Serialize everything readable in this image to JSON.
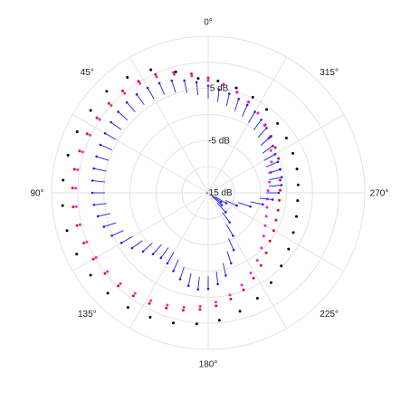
{
  "chart_data": {
    "type": "scatter",
    "coordinate_system": "polar",
    "angle_direction": "counterclockwise",
    "zero_angle": "top",
    "radial_ticks": [
      "5 dB",
      "-5 dB",
      "-15 dB"
    ],
    "angle_ticks": [
      "0°",
      "45°",
      "90°",
      "135°",
      "180°",
      "225°",
      "270°",
      "315°"
    ],
    "radial_range_dB": [
      -15,
      15
    ],
    "grid": true,
    "legend": "none",
    "series": [
      {
        "color": "#000000",
        "marker": "dot",
        "points": [
          {
            "theta": 5,
            "r": 7
          },
          {
            "theta": 15,
            "r": 9
          },
          {
            "theta": 25,
            "r": 11
          },
          {
            "theta": 35,
            "r": 12
          },
          {
            "theta": 45,
            "r": 12.5
          },
          {
            "theta": 55,
            "r": 12.5
          },
          {
            "theta": 65,
            "r": 12.7
          },
          {
            "theta": 75,
            "r": 12.8
          },
          {
            "theta": 85,
            "r": 12.9
          },
          {
            "theta": 95,
            "r": 13
          },
          {
            "theta": 105,
            "r": 13
          },
          {
            "theta": 115,
            "r": 12.8
          },
          {
            "theta": 125,
            "r": 12.5
          },
          {
            "theta": 135,
            "r": 12.2
          },
          {
            "theta": 145,
            "r": 11.8
          },
          {
            "theta": 155,
            "r": 11.3
          },
          {
            "theta": 165,
            "r": 10.8
          },
          {
            "theta": 175,
            "r": 10.2
          },
          {
            "theta": 185,
            "r": 9.5
          },
          {
            "theta": 195,
            "r": 8.5
          },
          {
            "theta": 205,
            "r": 7.3
          },
          {
            "theta": 215,
            "r": 6
          },
          {
            "theta": 225,
            "r": 4.8
          },
          {
            "theta": 235,
            "r": 3.8
          },
          {
            "theta": 245,
            "r": 3
          },
          {
            "theta": 255,
            "r": 2.5
          },
          {
            "theta": 265,
            "r": 2.2
          },
          {
            "theta": 275,
            "r": 2.3
          },
          {
            "theta": 285,
            "r": 2.6
          },
          {
            "theta": 295,
            "r": 2.9
          },
          {
            "theta": 305,
            "r": 3.3
          },
          {
            "theta": 315,
            "r": 3.8
          },
          {
            "theta": 325,
            "r": 4.5
          },
          {
            "theta": 335,
            "r": 5.2
          },
          {
            "theta": 345,
            "r": 5.8
          },
          {
            "theta": 355,
            "r": 6.5
          }
        ]
      },
      {
        "color": "#e4131b",
        "marker": "dot",
        "points": [
          {
            "theta": 0,
            "r": 7
          },
          {
            "theta": 8,
            "r": 8
          },
          {
            "theta": 16,
            "r": 9
          },
          {
            "theta": 24,
            "r": 9.8
          },
          {
            "theta": 32,
            "r": 10.2
          },
          {
            "theta": 40,
            "r": 10.5
          },
          {
            "theta": 48,
            "r": 10.6
          },
          {
            "theta": 56,
            "r": 10.7
          },
          {
            "theta": 64,
            "r": 10.8
          },
          {
            "theta": 72,
            "r": 10.9
          },
          {
            "theta": 80,
            "r": 11
          },
          {
            "theta": 88,
            "r": 11
          },
          {
            "theta": 96,
            "r": 11
          },
          {
            "theta": 104,
            "r": 10.9
          },
          {
            "theta": 112,
            "r": 10.7
          },
          {
            "theta": 120,
            "r": 10.4
          },
          {
            "theta": 128,
            "r": 10.1
          },
          {
            "theta": 136,
            "r": 9.8
          },
          {
            "theta": 144,
            "r": 9.4
          },
          {
            "theta": 152,
            "r": 9
          },
          {
            "theta": 160,
            "r": 8.5
          },
          {
            "theta": 168,
            "r": 8
          },
          {
            "theta": 176,
            "r": 7.4
          },
          {
            "theta": 184,
            "r": 6.7
          },
          {
            "theta": 192,
            "r": 5.8
          },
          {
            "theta": 200,
            "r": 4.8
          },
          {
            "theta": 208,
            "r": 3.5
          },
          {
            "theta": 216,
            "r": 2.2
          },
          {
            "theta": 224,
            "r": 1
          },
          {
            "theta": 232,
            "r": 0
          },
          {
            "theta": 240,
            "r": -0.5
          },
          {
            "theta": 248,
            "r": -1
          },
          {
            "theta": 256,
            "r": -1.2
          },
          {
            "theta": 264,
            "r": -1.3
          },
          {
            "theta": 272,
            "r": -1.2
          },
          {
            "theta": 280,
            "r": -1
          },
          {
            "theta": 288,
            "r": -0.5
          },
          {
            "theta": 296,
            "r": 0
          },
          {
            "theta": 304,
            "r": 0.5
          },
          {
            "theta": 312,
            "r": 1.2
          },
          {
            "theta": 320,
            "r": 2
          },
          {
            "theta": 328,
            "r": 3
          },
          {
            "theta": 336,
            "r": 4
          },
          {
            "theta": 344,
            "r": 5
          },
          {
            "theta": 352,
            "r": 6
          }
        ]
      },
      {
        "color": "#ee22e5",
        "marker": "dot",
        "points": [
          {
            "theta": 0,
            "r": 6.5
          },
          {
            "theta": 8,
            "r": 7.6
          },
          {
            "theta": 16,
            "r": 8.6
          },
          {
            "theta": 24,
            "r": 9.3
          },
          {
            "theta": 32,
            "r": 9.7
          },
          {
            "theta": 40,
            "r": 9.9
          },
          {
            "theta": 48,
            "r": 10
          },
          {
            "theta": 56,
            "r": 10.1
          },
          {
            "theta": 64,
            "r": 10.2
          },
          {
            "theta": 72,
            "r": 10.3
          },
          {
            "theta": 80,
            "r": 10.4
          },
          {
            "theta": 88,
            "r": 10.4
          },
          {
            "theta": 96,
            "r": 10.4
          },
          {
            "theta": 104,
            "r": 10.3
          },
          {
            "theta": 112,
            "r": 10.1
          },
          {
            "theta": 120,
            "r": 9.8
          },
          {
            "theta": 128,
            "r": 9.5
          },
          {
            "theta": 136,
            "r": 9.2
          },
          {
            "theta": 144,
            "r": 8.8
          },
          {
            "theta": 152,
            "r": 8.4
          },
          {
            "theta": 160,
            "r": 7.9
          },
          {
            "theta": 168,
            "r": 7.4
          },
          {
            "theta": 176,
            "r": 6.8
          },
          {
            "theta": 184,
            "r": 6
          },
          {
            "theta": 192,
            "r": 5
          },
          {
            "theta": 200,
            "r": 3.8
          },
          {
            "theta": 208,
            "r": 2.4
          },
          {
            "theta": 216,
            "r": 1
          },
          {
            "theta": 224,
            "r": -0.3
          },
          {
            "theta": 232,
            "r": -1.5
          },
          {
            "theta": 240,
            "r": -2.4
          },
          {
            "theta": 248,
            "r": -3
          },
          {
            "theta": 256,
            "r": -3.4
          },
          {
            "theta": 264,
            "r": -3.6
          },
          {
            "theta": 272,
            "r": -3.5
          },
          {
            "theta": 280,
            "r": -3.1
          },
          {
            "theta": 288,
            "r": -2.4
          },
          {
            "theta": 296,
            "r": -1.5
          },
          {
            "theta": 304,
            "r": -0.5
          },
          {
            "theta": 312,
            "r": 0.6
          },
          {
            "theta": 320,
            "r": 1.8
          },
          {
            "theta": 328,
            "r": 3
          },
          {
            "theta": 336,
            "r": 4.1
          },
          {
            "theta": 344,
            "r": 5.1
          },
          {
            "theta": 352,
            "r": 5.9
          }
        ]
      },
      {
        "color": "#1f1fe6",
        "marker": "arrow",
        "points": [
          {
            "theta": 0,
            "r": 5.5
          },
          {
            "theta": 6,
            "r": 6.3
          },
          {
            "theta": 12,
            "r": 7
          },
          {
            "theta": 18,
            "r": 7.6
          },
          {
            "theta": 24,
            "r": 8
          },
          {
            "theta": 30,
            "r": 8.2
          },
          {
            "theta": 36,
            "r": 8.3
          },
          {
            "theta": 42,
            "r": 8.3
          },
          {
            "theta": 48,
            "r": 8.2
          },
          {
            "theta": 54,
            "r": 8
          },
          {
            "theta": 60,
            "r": 7.8
          },
          {
            "theta": 66,
            "r": 7.6
          },
          {
            "theta": 72,
            "r": 7.5
          },
          {
            "theta": 78,
            "r": 7.4
          },
          {
            "theta": 84,
            "r": 7.3
          },
          {
            "theta": 90,
            "r": 7.2
          },
          {
            "theta": 96,
            "r": 7
          },
          {
            "theta": 102,
            "r": 6.6
          },
          {
            "theta": 108,
            "r": 6
          },
          {
            "theta": 114,
            "r": 5.2
          },
          {
            "theta": 120,
            "r": 4.2
          },
          {
            "theta": 126,
            "r": 3
          },
          {
            "theta": 132,
            "r": 1.8
          },
          {
            "theta": 138,
            "r": 0.8
          },
          {
            "theta": 144,
            "r": 0.4
          },
          {
            "theta": 150,
            "r": 0.6
          },
          {
            "theta": 156,
            "r": 1.4
          },
          {
            "theta": 162,
            "r": 2.4
          },
          {
            "theta": 168,
            "r": 3.2
          },
          {
            "theta": 174,
            "r": 3.6
          },
          {
            "theta": 180,
            "r": 3.4
          },
          {
            "theta": 186,
            "r": 2.6
          },
          {
            "theta": 192,
            "r": 1.2
          },
          {
            "theta": 198,
            "r": -0.8
          },
          {
            "theta": 204,
            "r": -3
          },
          {
            "theta": 210,
            "r": -5.5
          },
          {
            "theta": 216,
            "r": -8
          },
          {
            "theta": 222,
            "r": -10
          },
          {
            "theta": 228,
            "r": -11.5
          },
          {
            "theta": 234,
            "r": -12
          },
          {
            "theta": 240,
            "r": -11
          },
          {
            "theta": 246,
            "r": -9
          },
          {
            "theta": 252,
            "r": -6.5
          },
          {
            "theta": 258,
            "r": -4.3
          },
          {
            "theta": 264,
            "r": -2.6
          },
          {
            "theta": 270,
            "r": -1.5
          },
          {
            "theta": 276,
            "r": -0.9
          },
          {
            "theta": 282,
            "r": -0.6
          },
          {
            "theta": 288,
            "r": -0.5
          },
          {
            "theta": 294,
            "r": -0.4
          },
          {
            "theta": 300,
            "r": -0.2
          },
          {
            "theta": 306,
            "r": 0.3
          },
          {
            "theta": 312,
            "r": 1
          },
          {
            "theta": 318,
            "r": 1.7
          },
          {
            "theta": 324,
            "r": 2.3
          },
          {
            "theta": 330,
            "r": 2.9
          },
          {
            "theta": 336,
            "r": 3.4
          },
          {
            "theta": 342,
            "r": 3.9
          },
          {
            "theta": 348,
            "r": 4.4
          },
          {
            "theta": 354,
            "r": 4.9
          }
        ]
      }
    ]
  }
}
